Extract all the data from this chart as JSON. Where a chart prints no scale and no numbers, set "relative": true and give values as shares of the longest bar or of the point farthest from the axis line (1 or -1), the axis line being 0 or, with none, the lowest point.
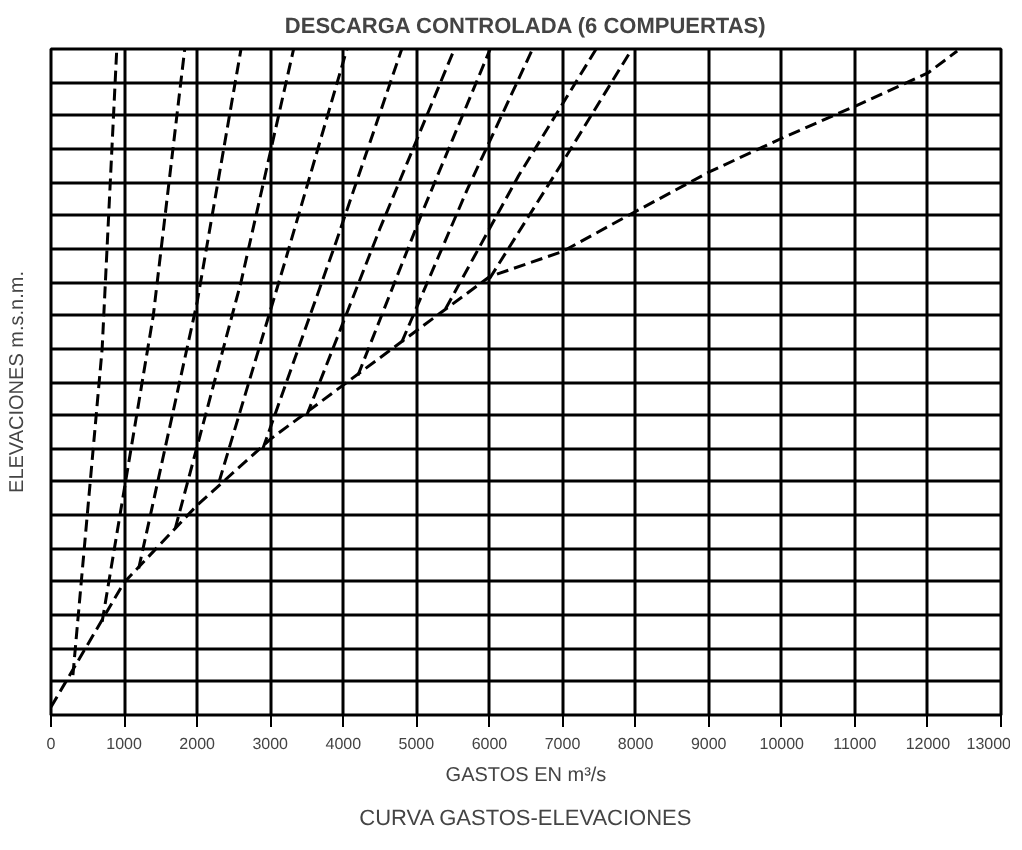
{
  "chart_data": {
    "type": "line",
    "title": "DESCARGA CONTROLADA (6 COMPUERTAS)",
    "xlabel": "GASTOS EN m³/s",
    "ylabel": "ELEVACIONES m.s.n.m.",
    "annotations": [
      "CURVA GASTOS-ELEVACIONES"
    ],
    "relative": true,
    "tick_labels": "x",
    "grid": true,
    "line_style": "dashed",
    "xlim": [
      0,
      13000
    ],
    "xticks": [
      0,
      1000,
      2000,
      3000,
      4000,
      5000,
      6000,
      7000,
      8000,
      9000,
      10000,
      11000,
      12000,
      13000
    ],
    "series": [
      {
        "color": "#000000",
        "x": [
          0,
          1000,
          2000,
          3000,
          5000,
          6000,
          7000,
          8000,
          9000,
          10000,
          11000,
          12000,
          12400
        ],
        "values": [
          0.012,
          0.199,
          0.315,
          0.414,
          0.577,
          0.658,
          0.696,
          0.756,
          0.815,
          0.866,
          0.914,
          0.964,
          0.997
        ]
      },
      {
        "color": "#000000",
        "x": [
          300,
          700,
          900
        ],
        "values": [
          0.06,
          0.55,
          1.0
        ]
      },
      {
        "color": "#000000",
        "x": [
          700,
          1400,
          1830
        ],
        "values": [
          0.14,
          0.6,
          1.0
        ]
      },
      {
        "color": "#000000",
        "x": [
          1200,
          2000,
          2600
        ],
        "values": [
          0.22,
          0.62,
          1.0
        ]
      },
      {
        "color": "#000000",
        "x": [
          1700,
          2600,
          3320
        ],
        "values": [
          0.28,
          0.65,
          1.0
        ]
      },
      {
        "color": "#000000",
        "x": [
          2300,
          3200,
          4050
        ],
        "values": [
          0.35,
          0.68,
          1.0
        ]
      },
      {
        "color": "#000000",
        "x": [
          2900,
          3900,
          4800
        ],
        "values": [
          0.4,
          0.71,
          1.0
        ]
      },
      {
        "color": "#000000",
        "x": [
          3500,
          4500,
          5520
        ],
        "values": [
          0.45,
          0.73,
          1.0
        ]
      },
      {
        "color": "#000000",
        "x": [
          4200,
          5100,
          6010
        ],
        "values": [
          0.51,
          0.76,
          1.0
        ]
      },
      {
        "color": "#000000",
        "x": [
          4800,
          5700,
          6590
        ],
        "values": [
          0.56,
          0.79,
          1.0
        ]
      },
      {
        "color": "#000000",
        "x": [
          5400,
          6400,
          7460
        ],
        "values": [
          0.61,
          0.81,
          1.0
        ]
      },
      {
        "color": "#000000",
        "x": [
          6000,
          7000,
          7950
        ],
        "values": [
          0.655,
          0.83,
          1.0
        ]
      }
    ]
  }
}
